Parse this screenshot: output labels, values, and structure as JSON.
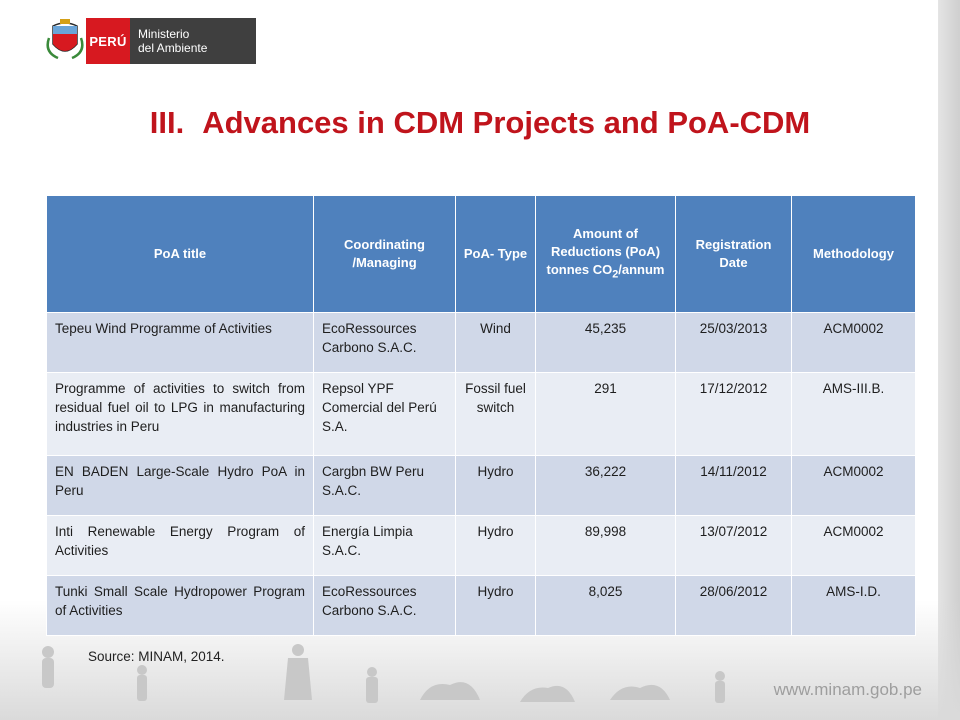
{
  "logo": {
    "country": "PERÚ",
    "ministry_line1": "Ministerio",
    "ministry_line2": "del Ambiente"
  },
  "title": {
    "number": "III.",
    "text": "Advances in CDM Projects and PoA-CDM"
  },
  "table": {
    "headers": {
      "poa_title": "PoA title",
      "coordinating": "Coordinating /Managing",
      "poa_type": "PoA- Type",
      "amount_prefix": "Amount of Reductions (PoA) tonnes CO",
      "amount_sub": "2",
      "amount_suffix": "/annum",
      "registration": "Registration Date",
      "methodology": "Methodology"
    },
    "rows": [
      {
        "title": "Tepeu Wind Programme of Activities",
        "coordinating": "EcoRessources Carbono S.A.C.",
        "type": "Wind",
        "amount": "45,235",
        "date": "25/03/2013",
        "methodology": "ACM0002"
      },
      {
        "title": "Programme of activities to switch from residual fuel oil to LPG in manufacturing industries in Peru",
        "coordinating": "Repsol YPF Comercial del Perú S.A.",
        "type": "Fossil fuel switch",
        "amount": "291",
        "date": "17/12/2012",
        "methodology": "AMS-III.B."
      },
      {
        "title": "EN BADEN Large-Scale Hydro PoA in Peru",
        "coordinating": "Cargbn BW Peru S.A.C.",
        "type": "Hydro",
        "amount": "36,222",
        "date": "14/11/2012",
        "methodology": "ACM0002"
      },
      {
        "title": "Inti Renewable Energy Program of Activities",
        "coordinating": "Energía Limpia S.A.C.",
        "type": "Hydro",
        "amount": "89,998",
        "date": "13/07/2012",
        "methodology": "ACM0002"
      },
      {
        "title": "Tunki Small Scale Hydropower Program of Activities",
        "coordinating": "EcoRessources Carbono S.A.C.",
        "type": "Hydro",
        "amount": "8,025",
        "date": "28/06/2012",
        "methodology": "AMS-I.D."
      }
    ]
  },
  "source": "Source: MINAM, 2014.",
  "footer_url": "www.minam.gob.pe",
  "colors": {
    "title": "#c0141c",
    "header_bg": "#4f81bd",
    "row_even": "#d0d8e8",
    "row_odd": "#e9edf4",
    "peru_red": "#d71920"
  }
}
